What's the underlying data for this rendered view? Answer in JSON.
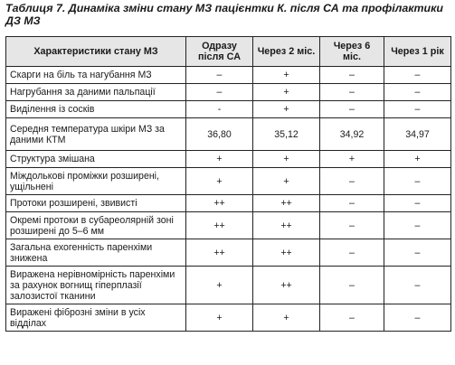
{
  "caption": "Таблиця 7. Динаміка зміни стану МЗ пацієнтки К. після СА та профілактики ДЗ МЗ",
  "columns": [
    "Характеристики стану МЗ",
    "Одразу після СА",
    "Через 2 міс.",
    "Через 6 міс.",
    "Через 1 рік"
  ],
  "rows": [
    {
      "label": "Скарги на біль та нагубання МЗ",
      "values": [
        "–",
        "+",
        "–",
        "–"
      ]
    },
    {
      "label": "Нагрубання за даними пальпації",
      "values": [
        "–",
        "+",
        "–",
        "–"
      ]
    },
    {
      "label": "Виділення із сосків",
      "values": [
        "-",
        "+",
        "–",
        "–"
      ]
    },
    {
      "label": "Середня температура шкіри МЗ за даними КТМ",
      "values": [
        "36,80",
        "35,12",
        "34,92",
        "34,97"
      ]
    },
    {
      "label": "Структура змішана",
      "values": [
        "+",
        "+",
        "+",
        "+"
      ]
    },
    {
      "label": "Міждолькові проміжки розширені, ущільнені",
      "values": [
        "+",
        "+",
        "–",
        "–"
      ]
    },
    {
      "label": "Протоки розширені, звивисті",
      "values": [
        "++",
        "++",
        "–",
        "–"
      ]
    },
    {
      "label": "Окремі протоки в субареолярній зоні розширені до 5–6 мм",
      "values": [
        "++",
        "++",
        "–",
        "–"
      ]
    },
    {
      "label": "Загальна ехогенність паренхіми знижена",
      "values": [
        "++",
        "++",
        "–",
        "–"
      ]
    },
    {
      "label": "Виражена нерівномірність паренхіми за рахунок вогнищ гіперплазії залозистої тканини",
      "values": [
        "+",
        "++",
        "–",
        "–"
      ]
    },
    {
      "label": "Виражені фіброзні зміни в усіх відділах",
      "values": [
        "+",
        "+",
        "–",
        "–"
      ]
    }
  ]
}
